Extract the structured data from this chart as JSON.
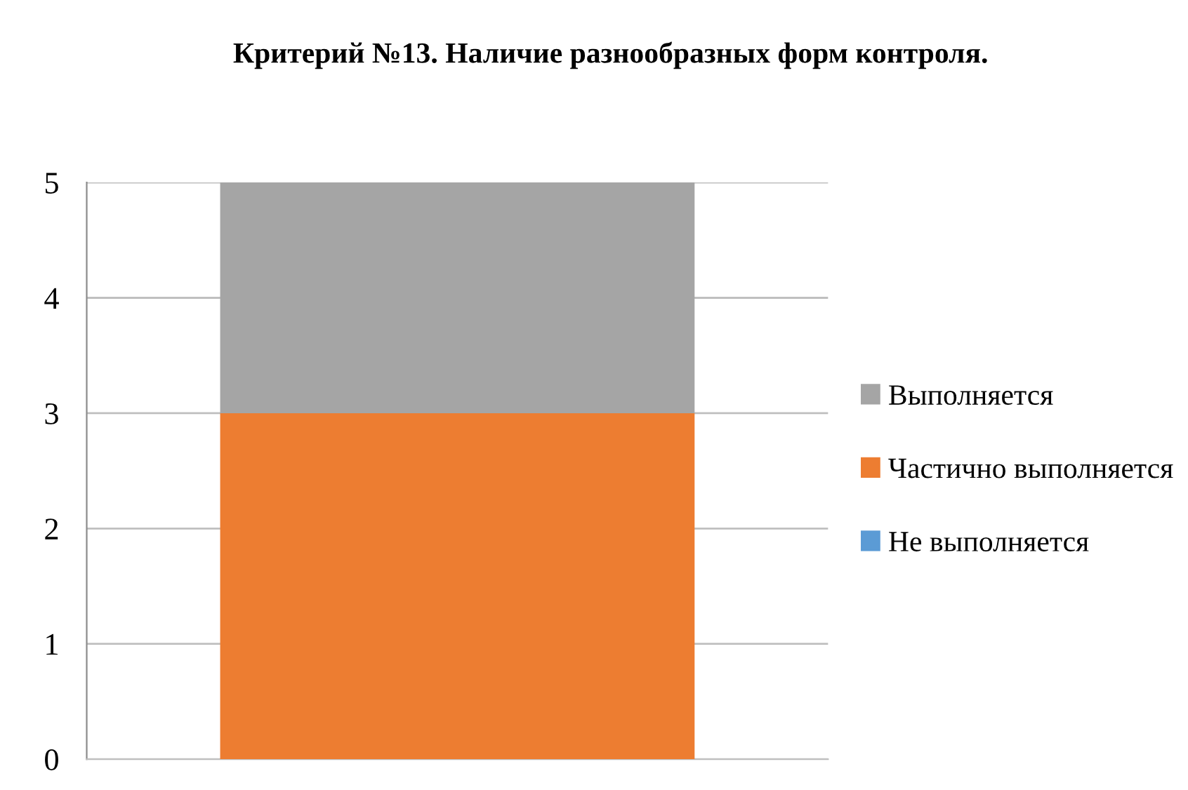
{
  "chart_data": {
    "type": "bar",
    "title": "Критерий №13. Наличие разнообразных форм контроля.",
    "stacked": true,
    "categories": [
      null
    ],
    "series": [
      {
        "name": "Не выполняется",
        "color": "#5b9bd5",
        "values": [
          0
        ]
      },
      {
        "name": "Частично выполняется",
        "color": "#ed7d31",
        "values": [
          3
        ]
      },
      {
        "name": "Выполняется",
        "color": "#a5a5a5",
        "values": [
          2
        ]
      }
    ],
    "ylim": [
      0,
      5
    ],
    "yticks": [
      0,
      1,
      2,
      3,
      4,
      5
    ],
    "grid": "y",
    "legend": "right"
  }
}
